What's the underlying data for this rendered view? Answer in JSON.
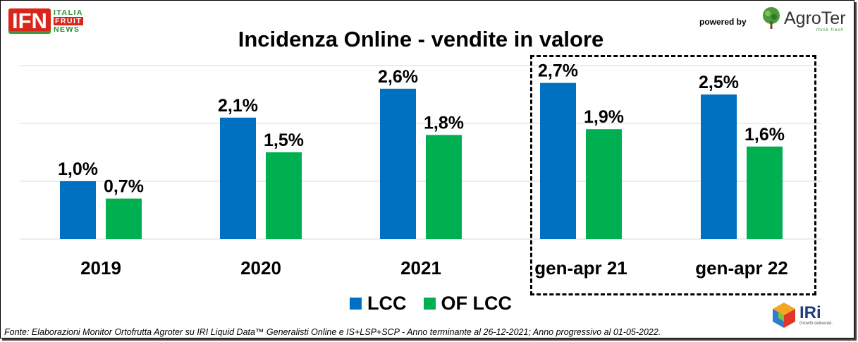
{
  "logo": {
    "main": "IFN",
    "line1": "ITALIA",
    "line2": "FRUIT",
    "line3": "NEWS"
  },
  "powered_by": "powered by",
  "partner": {
    "name": "AgroTer",
    "tagline": "think fresh"
  },
  "iri": {
    "name": "IRi",
    "tagline": "Growth delivered."
  },
  "footnote": "Fonte: Elaborazioni Monitor Ortofrutta Agroter su IRI Liquid Data™ Generalisti Online e IS+LSP+SCP - Anno terminante al 26-12-2021; Anno progressivo al 01-05-2022.",
  "colors": {
    "lcc": "#0070c0",
    "of_lcc": "#00b050",
    "grid": "#d9d9d9",
    "ifn_red": "#d9261c",
    "ifn_green": "#2d8a2d"
  },
  "chart_data": {
    "type": "bar",
    "title": "Incidenza Online - vendite in valore",
    "categories": [
      "2019",
      "2020",
      "2021",
      "gen-apr 21",
      "gen-apr 22"
    ],
    "series": [
      {
        "name": "LCC",
        "values": [
          1.0,
          2.1,
          2.6,
          2.7,
          2.5
        ],
        "labels": [
          "1,0%",
          "2,1%",
          "2,6%",
          "2,7%",
          "2,5%"
        ]
      },
      {
        "name": "OF LCC",
        "values": [
          0.7,
          1.5,
          1.8,
          1.9,
          1.6
        ],
        "labels": [
          "0,7%",
          "1,5%",
          "1,8%",
          "1,9%",
          "1,6%"
        ]
      }
    ],
    "ylim": [
      0,
      3.0
    ],
    "grid": true,
    "legend": "bottom-center",
    "highlighted_categories": [
      "gen-apr 21",
      "gen-apr 22"
    ]
  }
}
